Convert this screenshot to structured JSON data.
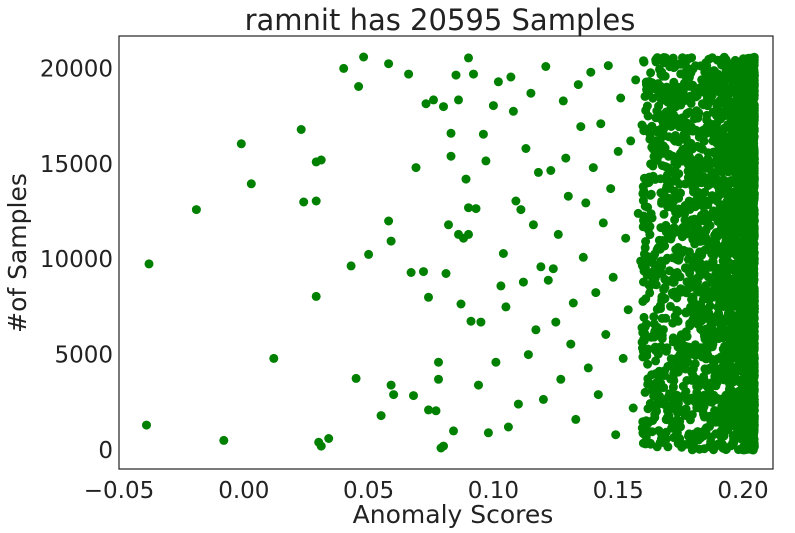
{
  "chart_data": {
    "type": "scatter",
    "title": "ramnit has 20595 Samples",
    "xlabel": "Anomaly Scores",
    "ylabel": "#of Samples",
    "xlim": [
      -0.05,
      0.212
    ],
    "ylim": [
      -1000,
      21700
    ],
    "xticks": [
      -0.05,
      0.0,
      0.05,
      0.1,
      0.15,
      0.2
    ],
    "xtick_labels": [
      "−0.05",
      "0.00",
      "0.05",
      "0.10",
      "0.15",
      "0.20"
    ],
    "yticks": [
      0,
      5000,
      10000,
      15000,
      20000
    ],
    "ytick_labels": [
      "0",
      "5000",
      "10000",
      "15000",
      "20000"
    ],
    "grid": false,
    "legend": "none",
    "color": "#008000",
    "n_samples": 20595,
    "series": [
      {
        "points": [
          [
            -0.039,
            1300
          ],
          [
            -0.038,
            9750
          ],
          [
            -0.019,
            12600
          ],
          [
            -0.008,
            500
          ],
          [
            -0.001,
            16050
          ],
          [
            0.003,
            13950
          ],
          [
            0.012,
            4800
          ],
          [
            0.023,
            16800
          ],
          [
            0.024,
            13000
          ],
          [
            0.029,
            15100
          ],
          [
            0.029,
            13050
          ],
          [
            0.029,
            8050
          ],
          [
            0.03,
            400
          ],
          [
            0.031,
            200
          ],
          [
            0.031,
            15200
          ],
          [
            0.034,
            600
          ],
          [
            0.04,
            20000
          ],
          [
            0.043,
            9650
          ],
          [
            0.045,
            3750
          ],
          [
            0.046,
            19050
          ],
          [
            0.048,
            20600
          ],
          [
            0.05,
            10250
          ],
          [
            0.055,
            1800
          ],
          [
            0.058,
            20250
          ],
          [
            0.058,
            12000
          ],
          [
            0.059,
            10950
          ],
          [
            0.059,
            3400
          ],
          [
            0.06,
            2900
          ],
          [
            0.066,
            19700
          ],
          [
            0.067,
            9300
          ],
          [
            0.068,
            2850
          ],
          [
            0.069,
            14800
          ],
          [
            0.072,
            9350
          ],
          [
            0.073,
            18150
          ],
          [
            0.074,
            8000
          ],
          [
            0.074,
            2100
          ],
          [
            0.076,
            18350
          ],
          [
            0.077,
            2050
          ],
          [
            0.078,
            3700
          ],
          [
            0.078,
            4600
          ],
          [
            0.079,
            100
          ],
          [
            0.08,
            200
          ],
          [
            0.08,
            18000
          ],
          [
            0.081,
            9250
          ],
          [
            0.082,
            11800
          ],
          [
            0.083,
            16600
          ],
          [
            0.083,
            15400
          ],
          [
            0.084,
            1000
          ],
          [
            0.085,
            19650
          ],
          [
            0.086,
            18350
          ],
          [
            0.086,
            11300
          ],
          [
            0.087,
            7650
          ],
          [
            0.088,
            11100
          ],
          [
            0.089,
            14200
          ],
          [
            0.09,
            20550
          ],
          [
            0.09,
            12700
          ],
          [
            0.09,
            11300
          ],
          [
            0.091,
            6750
          ],
          [
            0.092,
            19700
          ],
          [
            0.093,
            12650
          ],
          [
            0.094,
            3400
          ],
          [
            0.095,
            6700
          ],
          [
            0.096,
            16550
          ],
          [
            0.097,
            15150
          ],
          [
            0.098,
            900
          ],
          [
            0.1,
            18050
          ],
          [
            0.101,
            4600
          ],
          [
            0.102,
            19300
          ],
          [
            0.103,
            8600
          ],
          [
            0.104,
            10300
          ],
          [
            0.105,
            7500
          ],
          [
            0.106,
            1200
          ],
          [
            0.107,
            19550
          ],
          [
            0.108,
            17750
          ],
          [
            0.109,
            13050
          ],
          [
            0.11,
            2400
          ],
          [
            0.111,
            12600
          ],
          [
            0.112,
            8800
          ],
          [
            0.113,
            15800
          ],
          [
            0.114,
            5000
          ],
          [
            0.115,
            18700
          ],
          [
            0.116,
            11800
          ],
          [
            0.117,
            6300
          ],
          [
            0.118,
            14550
          ],
          [
            0.119,
            9600
          ],
          [
            0.12,
            2650
          ],
          [
            0.121,
            20100
          ],
          [
            0.122,
            8900
          ],
          [
            0.123,
            14650
          ],
          [
            0.124,
            9500
          ],
          [
            0.125,
            6700
          ],
          [
            0.126,
            11300
          ],
          [
            0.127,
            3700
          ],
          [
            0.128,
            18300
          ],
          [
            0.129,
            15300
          ],
          [
            0.13,
            13300
          ],
          [
            0.131,
            5550
          ],
          [
            0.132,
            7700
          ],
          [
            0.133,
            1600
          ],
          [
            0.134,
            19150
          ],
          [
            0.135,
            16950
          ],
          [
            0.136,
            10100
          ],
          [
            0.137,
            12950
          ],
          [
            0.138,
            4300
          ],
          [
            0.139,
            19800
          ],
          [
            0.14,
            14800
          ],
          [
            0.141,
            8250
          ],
          [
            0.142,
            2900
          ],
          [
            0.143,
            17100
          ],
          [
            0.144,
            11900
          ],
          [
            0.145,
            6050
          ],
          [
            0.146,
            20150
          ],
          [
            0.147,
            13700
          ],
          [
            0.148,
            9050
          ],
          [
            0.149,
            800
          ],
          [
            0.15,
            15650
          ],
          [
            0.151,
            18450
          ],
          [
            0.152,
            4800
          ],
          [
            0.153,
            11100
          ],
          [
            0.154,
            7350
          ],
          [
            0.155,
            16200
          ],
          [
            0.156,
            2200
          ],
          [
            0.157,
            19400
          ],
          [
            0.158,
            12400
          ],
          [
            0.159,
            9900
          ],
          [
            0.16,
            5300
          ],
          [
            0.161,
            17800
          ],
          [
            0.162,
            14100
          ],
          [
            0.163,
            300
          ],
          [
            0.164,
            8700
          ],
          [
            0.165,
            20450
          ],
          [
            0.166,
            10600
          ],
          [
            0.167,
            3500
          ],
          [
            0.168,
            15950
          ],
          [
            0.169,
            6900
          ]
        ]
      }
    ]
  }
}
